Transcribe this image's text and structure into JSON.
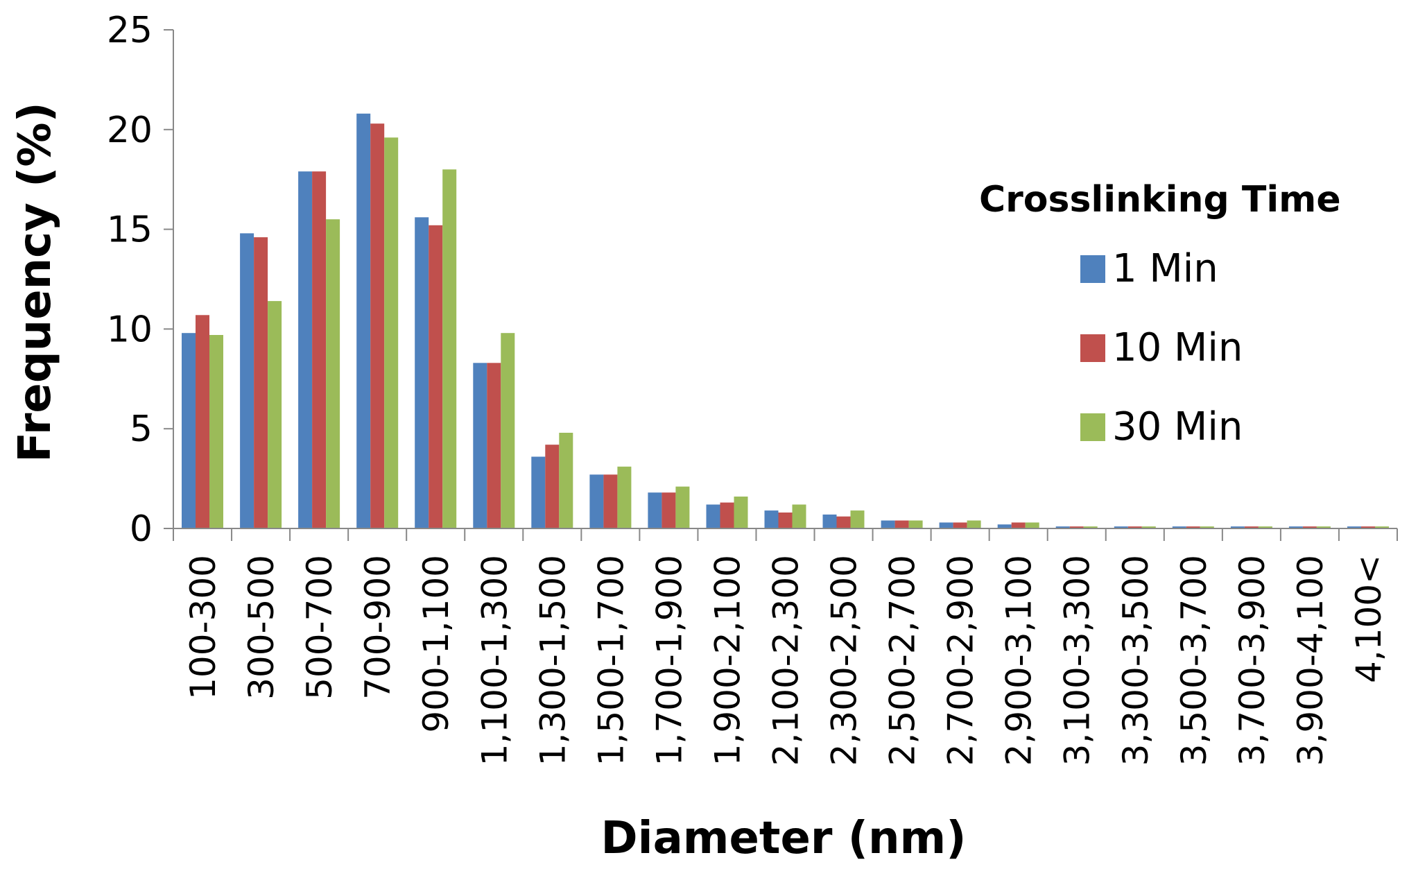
{
  "chart_data": {
    "type": "bar",
    "xlabel": "Diameter (nm)",
    "ylabel": "Frequency (%)",
    "ylim": [
      0,
      25
    ],
    "yticks": [
      0,
      5,
      10,
      15,
      20,
      25
    ],
    "grid": false,
    "legend": {
      "title": "Crosslinking Time",
      "placement": "right"
    },
    "categories": [
      "100-300",
      "300-500",
      "500-700",
      "700-900",
      "900-1,100",
      "1,100-1,300",
      "1,300-1,500",
      "1,500-1,700",
      "1,700-1,900",
      "1,900-2,100",
      "2,100-2,300",
      "2,300-2,500",
      "2,500-2,700",
      "2,700-2,900",
      "2,900-3,100",
      "3,100-3,300",
      "3,300-3,500",
      "3,500-3,700",
      "3,700-3,900",
      "3,900-4,100",
      "4,100<"
    ],
    "series": [
      {
        "name": "1 Min",
        "color": "#4F81BD",
        "values": [
          9.8,
          14.8,
          17.9,
          20.8,
          15.6,
          8.3,
          3.6,
          2.7,
          1.8,
          1.2,
          0.9,
          0.7,
          0.4,
          0.3,
          0.2,
          0.1,
          0.1,
          0.1,
          0.1,
          0.1,
          0.1
        ]
      },
      {
        "name": "10 Min",
        "color": "#C0504D",
        "values": [
          10.7,
          14.6,
          17.9,
          20.3,
          15.2,
          8.3,
          4.2,
          2.7,
          1.8,
          1.3,
          0.8,
          0.6,
          0.4,
          0.3,
          0.3,
          0.1,
          0.1,
          0.1,
          0.1,
          0.1,
          0.1
        ]
      },
      {
        "name": "30 Min",
        "color": "#9BBB59",
        "values": [
          9.7,
          11.4,
          15.5,
          19.6,
          18.0,
          9.8,
          4.8,
          3.1,
          2.1,
          1.6,
          1.2,
          0.9,
          0.4,
          0.4,
          0.3,
          0.1,
          0.1,
          0.1,
          0.1,
          0.1,
          0.1
        ]
      }
    ]
  }
}
